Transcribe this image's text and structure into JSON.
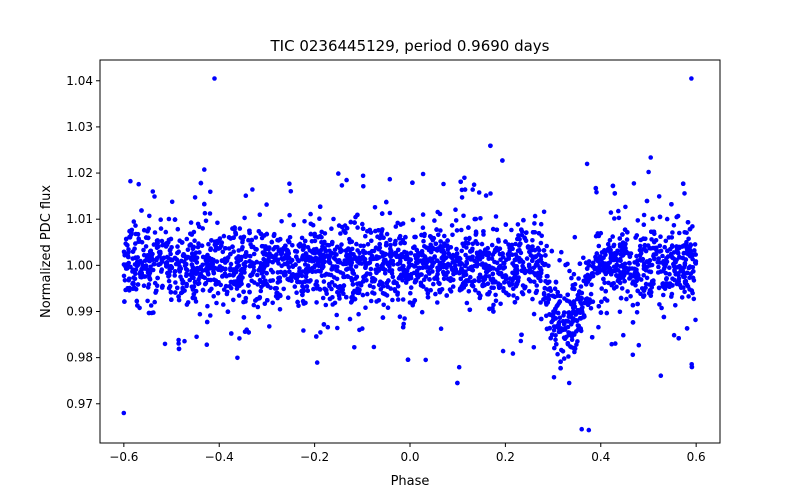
{
  "chart_data": {
    "type": "scatter",
    "title": "TIC 0236445129, period 0.9690 days",
    "xlabel": "Phase",
    "ylabel": "Normalized PDC flux",
    "xlim": [
      -0.65,
      0.65
    ],
    "ylim": [
      0.9615,
      1.0445
    ],
    "xticks": [
      -0.6,
      -0.4,
      -0.2,
      0.0,
      0.2,
      0.4,
      0.6
    ],
    "xtick_labels": [
      "−0.6",
      "−0.4",
      "−0.2",
      "0.0",
      "0.2",
      "0.4",
      "0.6"
    ],
    "yticks": [
      0.97,
      0.98,
      0.99,
      1.0,
      1.01,
      1.02,
      1.03,
      1.04
    ],
    "ytick_labels": [
      "0.97",
      "0.98",
      "0.99",
      "1.00",
      "1.01",
      "1.02",
      "1.03",
      "1.04"
    ],
    "grid": false,
    "legend": "none",
    "marker_color": "#0000ff",
    "n_points": 3200,
    "baseline_flux": 1.0,
    "scatter_sigma": 0.004,
    "transit": {
      "center_phase": 0.33,
      "half_width": 0.055,
      "depth": 0.013
    },
    "notable_points": [
      {
        "x": -0.41,
        "y": 1.0405
      },
      {
        "x": 0.59,
        "y": 1.0405
      },
      {
        "x": -0.6,
        "y": 0.968
      },
      {
        "x": 0.36,
        "y": 0.9645
      },
      {
        "x": 0.375,
        "y": 0.9643
      }
    ]
  }
}
